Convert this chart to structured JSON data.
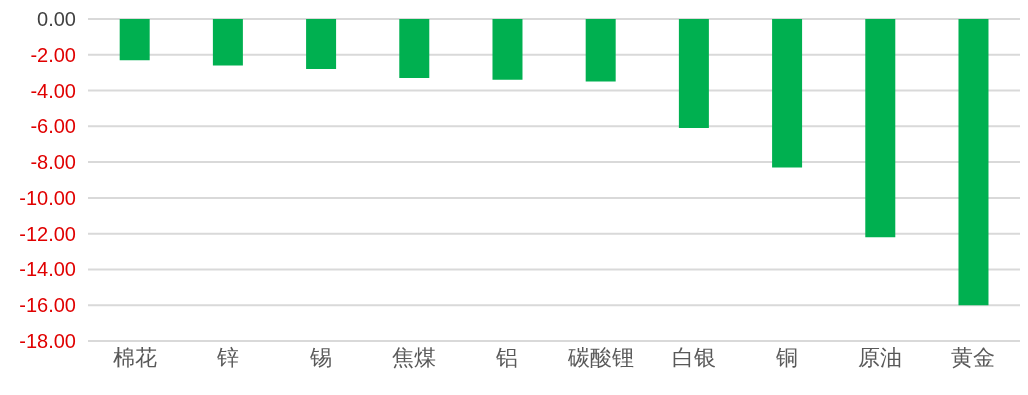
{
  "chart_data": {
    "type": "bar",
    "categories": [
      "棉花",
      "锌",
      "锡",
      "焦煤",
      "铝",
      "碳酸锂",
      "白银",
      "铜",
      "原油",
      "黄金"
    ],
    "values": [
      -2.3,
      -2.6,
      -2.8,
      -3.3,
      -3.4,
      -3.5,
      -6.1,
      -8.3,
      -12.2,
      -16.0
    ],
    "color": "#00b050",
    "ylim": [
      -18,
      0
    ],
    "yticks": [
      {
        "value": 0,
        "label": "0.00"
      },
      {
        "value": -2,
        "label": "-2.00"
      },
      {
        "value": -4,
        "label": "-4.00"
      },
      {
        "value": -6,
        "label": "-6.00"
      },
      {
        "value": -8,
        "label": "-8.00"
      },
      {
        "value": -10,
        "label": "-10.00"
      },
      {
        "value": -12,
        "label": "-12.00"
      },
      {
        "value": -14,
        "label": "-14.00"
      },
      {
        "value": -16,
        "label": "-16.00"
      },
      {
        "value": -18,
        "label": "-18.00"
      }
    ],
    "grid": "y"
  }
}
